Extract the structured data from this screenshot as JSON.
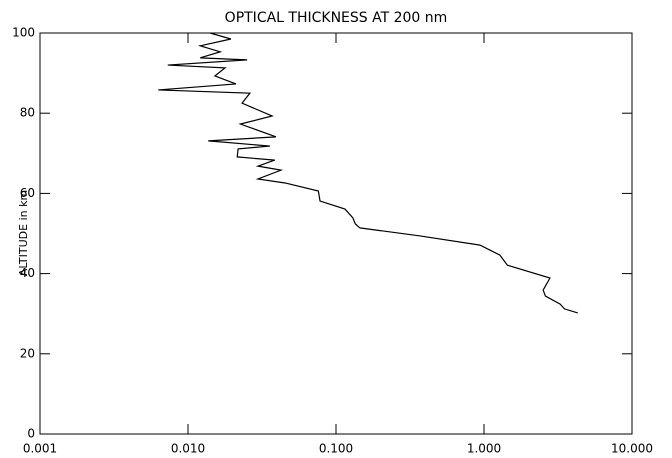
{
  "chart_data": {
    "type": "line",
    "title": "OPTICAL THICKNESS AT 200 nm",
    "ylabel": "ALTITUDE in km",
    "xscale": "log",
    "xlim": [
      0.001,
      10
    ],
    "ylim": [
      0,
      100
    ],
    "xticks": [
      {
        "value": 0.001,
        "label": "0.001"
      },
      {
        "value": 0.01,
        "label": "0.010"
      },
      {
        "value": 0.1,
        "label": "0.100"
      },
      {
        "value": 1,
        "label": "1.000"
      },
      {
        "value": 10,
        "label": "10.000"
      }
    ],
    "yticks": [
      0,
      20,
      40,
      60,
      80,
      100
    ],
    "color": "#000000",
    "x": [
      0.0141,
      0.0195,
      0.0121,
      0.0165,
      0.0121,
      0.0251,
      0.0073,
      0.0178,
      0.0152,
      0.0211,
      0.0063,
      0.0262,
      0.0232,
      0.037,
      0.0226,
      0.0393,
      0.0137,
      0.0358,
      0.0218,
      0.0215,
      0.0386,
      0.0297,
      0.0425,
      0.0297,
      0.0453,
      0.076,
      0.078,
      0.115,
      0.13,
      0.135,
      0.145,
      0.37,
      0.94,
      1.28,
      1.44,
      2.79,
      2.51,
      2.6,
      3.27,
      3.5,
      4.3
    ],
    "values": [
      100,
      98.5,
      96.8,
      95.3,
      93.8,
      93.3,
      92.0,
      91.3,
      89.3,
      87.3,
      85.8,
      85.0,
      82.5,
      79.3,
      77.3,
      74.1,
      73.1,
      71.8,
      71.1,
      69.1,
      68.3,
      66.8,
      65.8,
      63.6,
      62.6,
      60.6,
      58.1,
      56.1,
      53.9,
      52.4,
      51.4,
      49.4,
      47.1,
      44.6,
      42.1,
      38.9,
      35.9,
      34.4,
      32.4,
      31.2,
      30.2
    ]
  }
}
